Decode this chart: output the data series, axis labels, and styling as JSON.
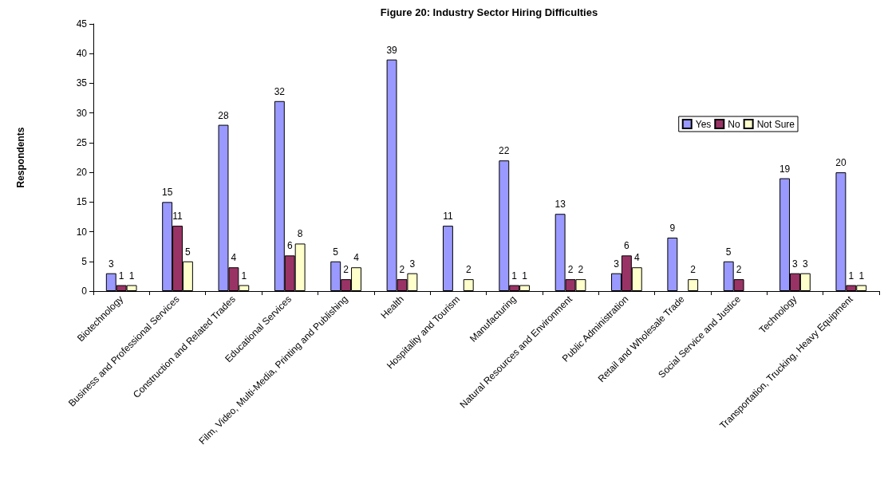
{
  "chart_data": {
    "type": "bar",
    "title": "Figure 20: Industry Sector Hiring Difficulties",
    "ylabel": "Respondents",
    "categories": [
      "Biotechnology",
      "Business and Professional Services",
      "Construction and Related Trades",
      "Educational Services",
      "Film, Video, Multi-Media, Printing and Publishing",
      "Health",
      "Hospitality and Tourism",
      "Manufacturing",
      "Natural Resources and Environment",
      "Public Administration",
      "Retail and Wholesale Trade",
      "Social Service and Justice",
      "Technology",
      "Transportation, Trucking, Heavy Equipment"
    ],
    "series": [
      {
        "name": "Yes",
        "color": "#9999ff",
        "values": [
          3,
          15,
          28,
          32,
          5,
          39,
          11,
          22,
          13,
          3,
          9,
          5,
          19,
          20
        ]
      },
      {
        "name": "No",
        "color": "#993366",
        "values": [
          1,
          11,
          4,
          6,
          2,
          2,
          null,
          1,
          2,
          6,
          null,
          2,
          3,
          1
        ]
      },
      {
        "name": "Not Sure",
        "color": "#ffffcc",
        "values": [
          1,
          5,
          1,
          8,
          4,
          3,
          2,
          1,
          2,
          4,
          2,
          null,
          3,
          1
        ]
      }
    ],
    "ylim": [
      0,
      45
    ],
    "yticks": [
      0,
      5,
      10,
      15,
      20,
      25,
      30,
      35,
      40,
      45
    ],
    "grid": false,
    "legend": "top right",
    "data_labels": true
  }
}
